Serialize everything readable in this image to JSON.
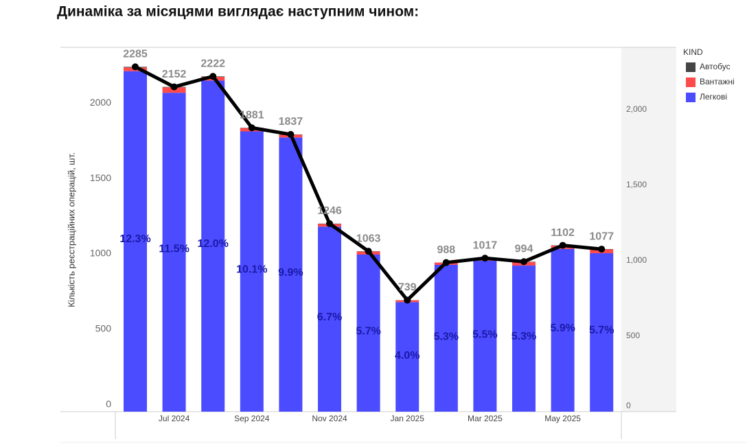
{
  "chart_data": {
    "type": "stacked-bar-line",
    "title": "Динаміка за місяцями виглядає наступним чином:",
    "y_label": "Кількість реєстраційних операцій, шт.",
    "legend_title": "KIND",
    "categories": [
      null,
      "Jul 2024",
      null,
      "Sep 2024",
      null,
      "Nov 2024",
      null,
      "Jan 2025",
      null,
      "Mar 2025",
      null,
      "May 2025",
      null
    ],
    "series": [
      {
        "name": "Автобус",
        "color": "#454545",
        "values": [
          4,
          3,
          3,
          2,
          2,
          2,
          2,
          1,
          1,
          2,
          2,
          2,
          2
        ]
      },
      {
        "name": "Вантажні",
        "color": "#ff4b4b",
        "values": [
          25,
          36,
          25,
          22,
          18,
          18,
          20,
          12,
          14,
          15,
          24,
          22,
          25
        ]
      },
      {
        "name": "Легкові",
        "color": "#4b4bff",
        "values": [
          2256,
          2113,
          2194,
          1857,
          1817,
          1226,
          1041,
          726,
          973,
          1000,
          968,
          1078,
          1050
        ]
      }
    ],
    "bar_labels": [
      "12.3%",
      "11.5%",
      "12.0%",
      "10.1%",
      "9.9%",
      "6.7%",
      "5.7%",
      "4.0%",
      "5.3%",
      "5.5%",
      "5.3%",
      "5.9%",
      "5.7%"
    ],
    "line": {
      "color": "#000000",
      "values": [
        2285,
        2152,
        2222,
        1881,
        1837,
        1246,
        1063,
        739,
        988,
        1017,
        994,
        1102,
        1077
      ]
    },
    "ylim": [
      0,
      2414
    ],
    "yticks": [
      0,
      500,
      1000,
      1500,
      2000
    ],
    "y2lim": [
      0,
      2414
    ],
    "y2ticks": [
      0,
      500,
      {
        "value": 1000,
        "label": "1,000"
      },
      {
        "value": 1500,
        "label": "1,500"
      },
      {
        "value": 2000,
        "label": "2,000"
      }
    ]
  }
}
